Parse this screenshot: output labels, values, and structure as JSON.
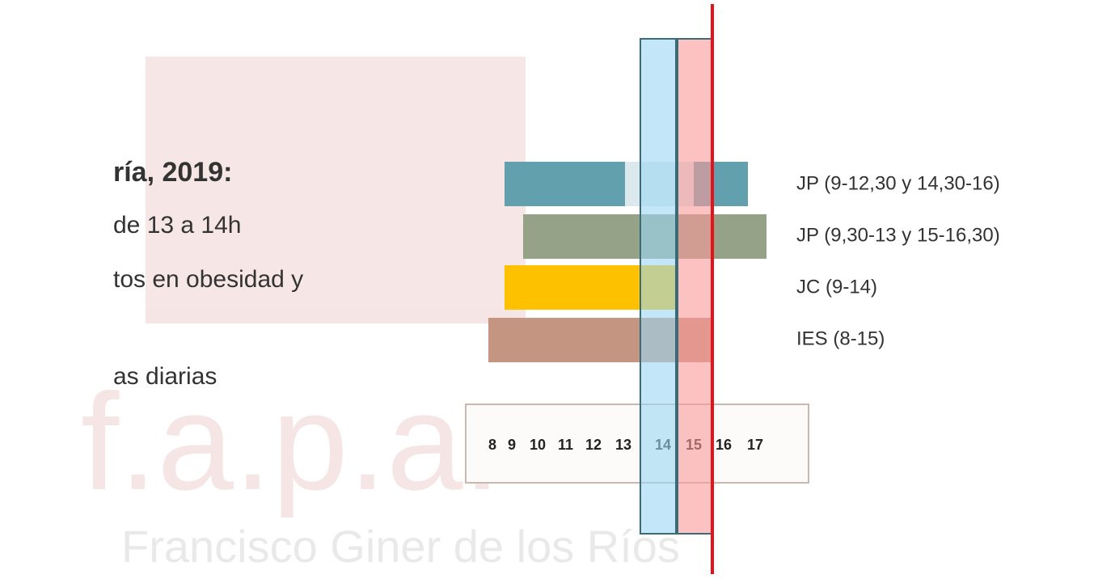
{
  "watermark": {
    "letters": "f.a.p.a.",
    "name": "Francisco Giner de los Ríos"
  },
  "slide": {
    "heading": "ría, 2019:",
    "lines": [
      "de 13 a 14h",
      "tos en obesidad y",
      "as diarias"
    ]
  },
  "schedule": {
    "rows": [
      "JP (9-12,30 y 14,30-16)",
      "JP (9,30-13 y 15-16,30)",
      "JC (9-14)",
      "IES (8-15)"
    ],
    "hours": [
      "8",
      "9",
      "10",
      "11",
      "12",
      "13",
      "14",
      "15",
      "16",
      "17"
    ]
  }
}
